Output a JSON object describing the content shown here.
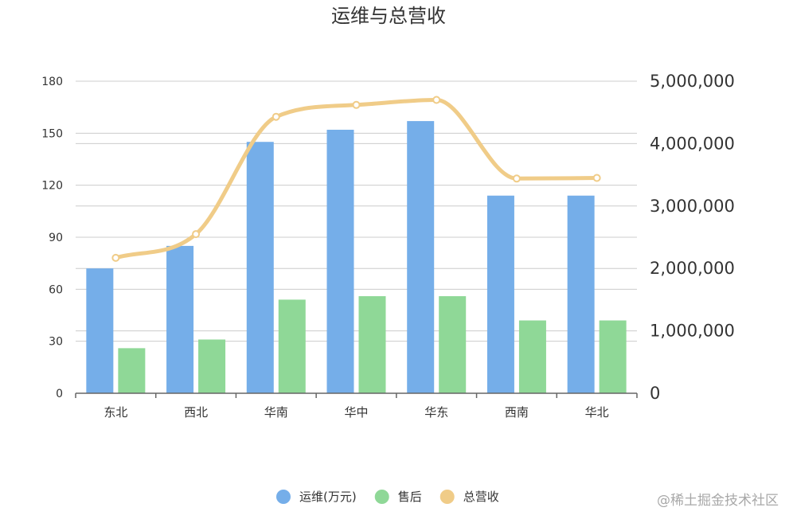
{
  "chart_data": {
    "type": "bar",
    "title": "运维与总营收",
    "categories": [
      "东北",
      "西北",
      "华南",
      "华中",
      "华东",
      "西南",
      "华北"
    ],
    "series": [
      {
        "name": "运维(万元)",
        "type": "bar",
        "axis": "left",
        "color": "#75aee9",
        "values": [
          72,
          85,
          145,
          152,
          157,
          114,
          114
        ]
      },
      {
        "name": "售后",
        "type": "bar",
        "axis": "left",
        "color": "#8fd897",
        "values": [
          26,
          31,
          54,
          56,
          56,
          42,
          42
        ]
      },
      {
        "name": "总营收",
        "type": "line",
        "smooth": true,
        "axis": "right",
        "color": "#f0cc88",
        "values": [
          2170000,
          2550000,
          4430000,
          4620000,
          4700000,
          3440000,
          3450000
        ]
      }
    ],
    "y_left": {
      "min": 0,
      "max": 180,
      "ticks": [
        0,
        30,
        60,
        90,
        120,
        150,
        180
      ],
      "tick_labels": [
        "0",
        "30",
        "60",
        "90",
        "120",
        "150",
        "180"
      ]
    },
    "y_right": {
      "min": 0,
      "max": 5000000,
      "ticks": [
        0,
        1000000,
        2000000,
        3000000,
        4000000,
        5000000
      ],
      "tick_labels": [
        "0",
        "1,000,000",
        "2,000,000",
        "3,000,000",
        "4,000,000",
        "5,000,000"
      ]
    },
    "grid": true,
    "legend_position": "bottom-center"
  },
  "watermark": "@稀土掘金技术社区"
}
